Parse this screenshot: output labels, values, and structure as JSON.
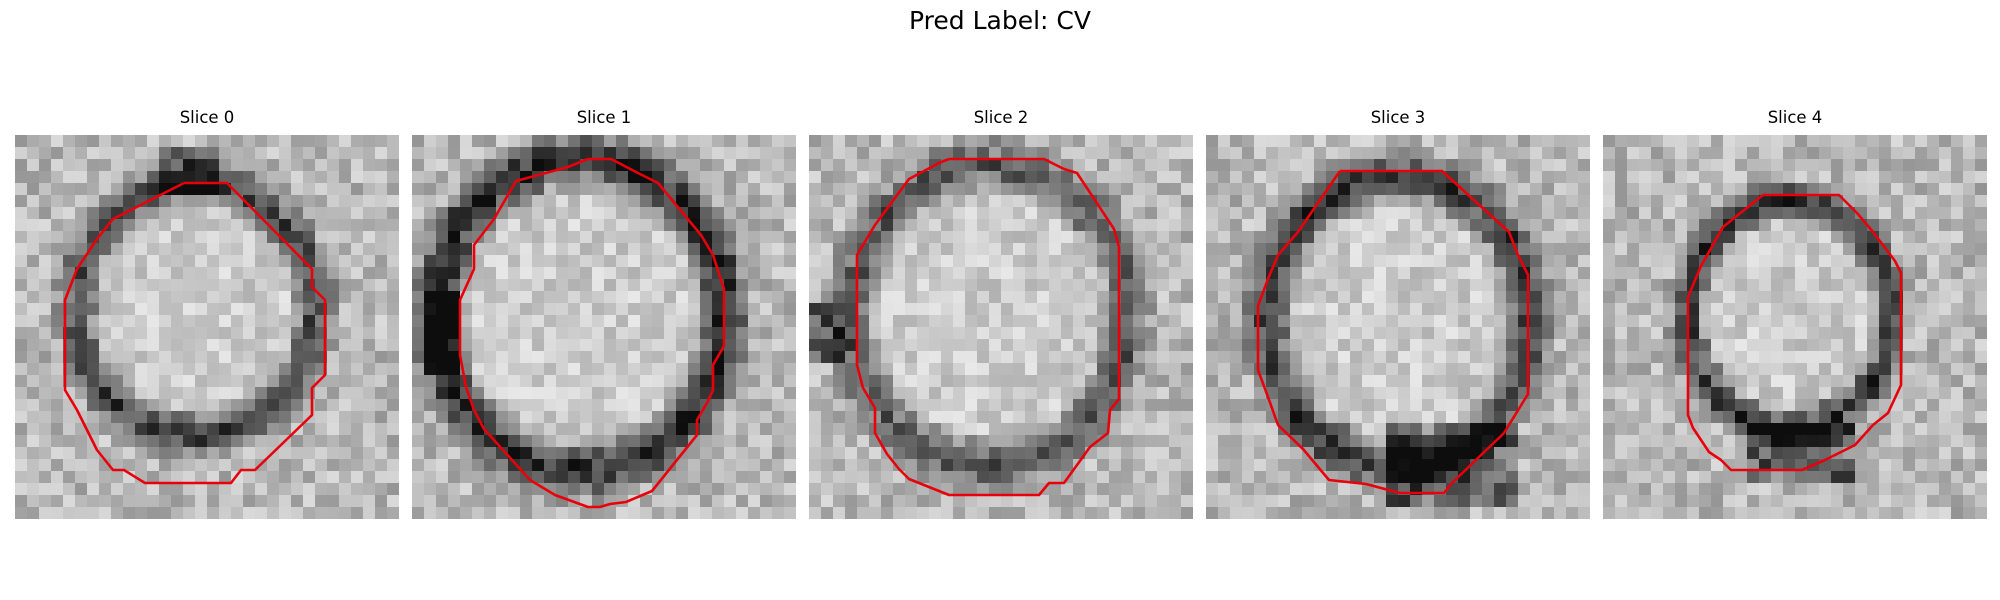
{
  "figure": {
    "title": "Pred Label: CV"
  },
  "slices": [
    {
      "title": "Slice 0",
      "contour_color": "#e8000b"
    },
    {
      "title": "Slice 1",
      "contour_color": "#e8000b"
    },
    {
      "title": "Slice 2",
      "contour_color": "#e8000b"
    },
    {
      "title": "Slice 3",
      "contour_color": "#e8000b"
    },
    {
      "title": "Slice 4",
      "contour_color": "#e8000b"
    }
  ]
}
